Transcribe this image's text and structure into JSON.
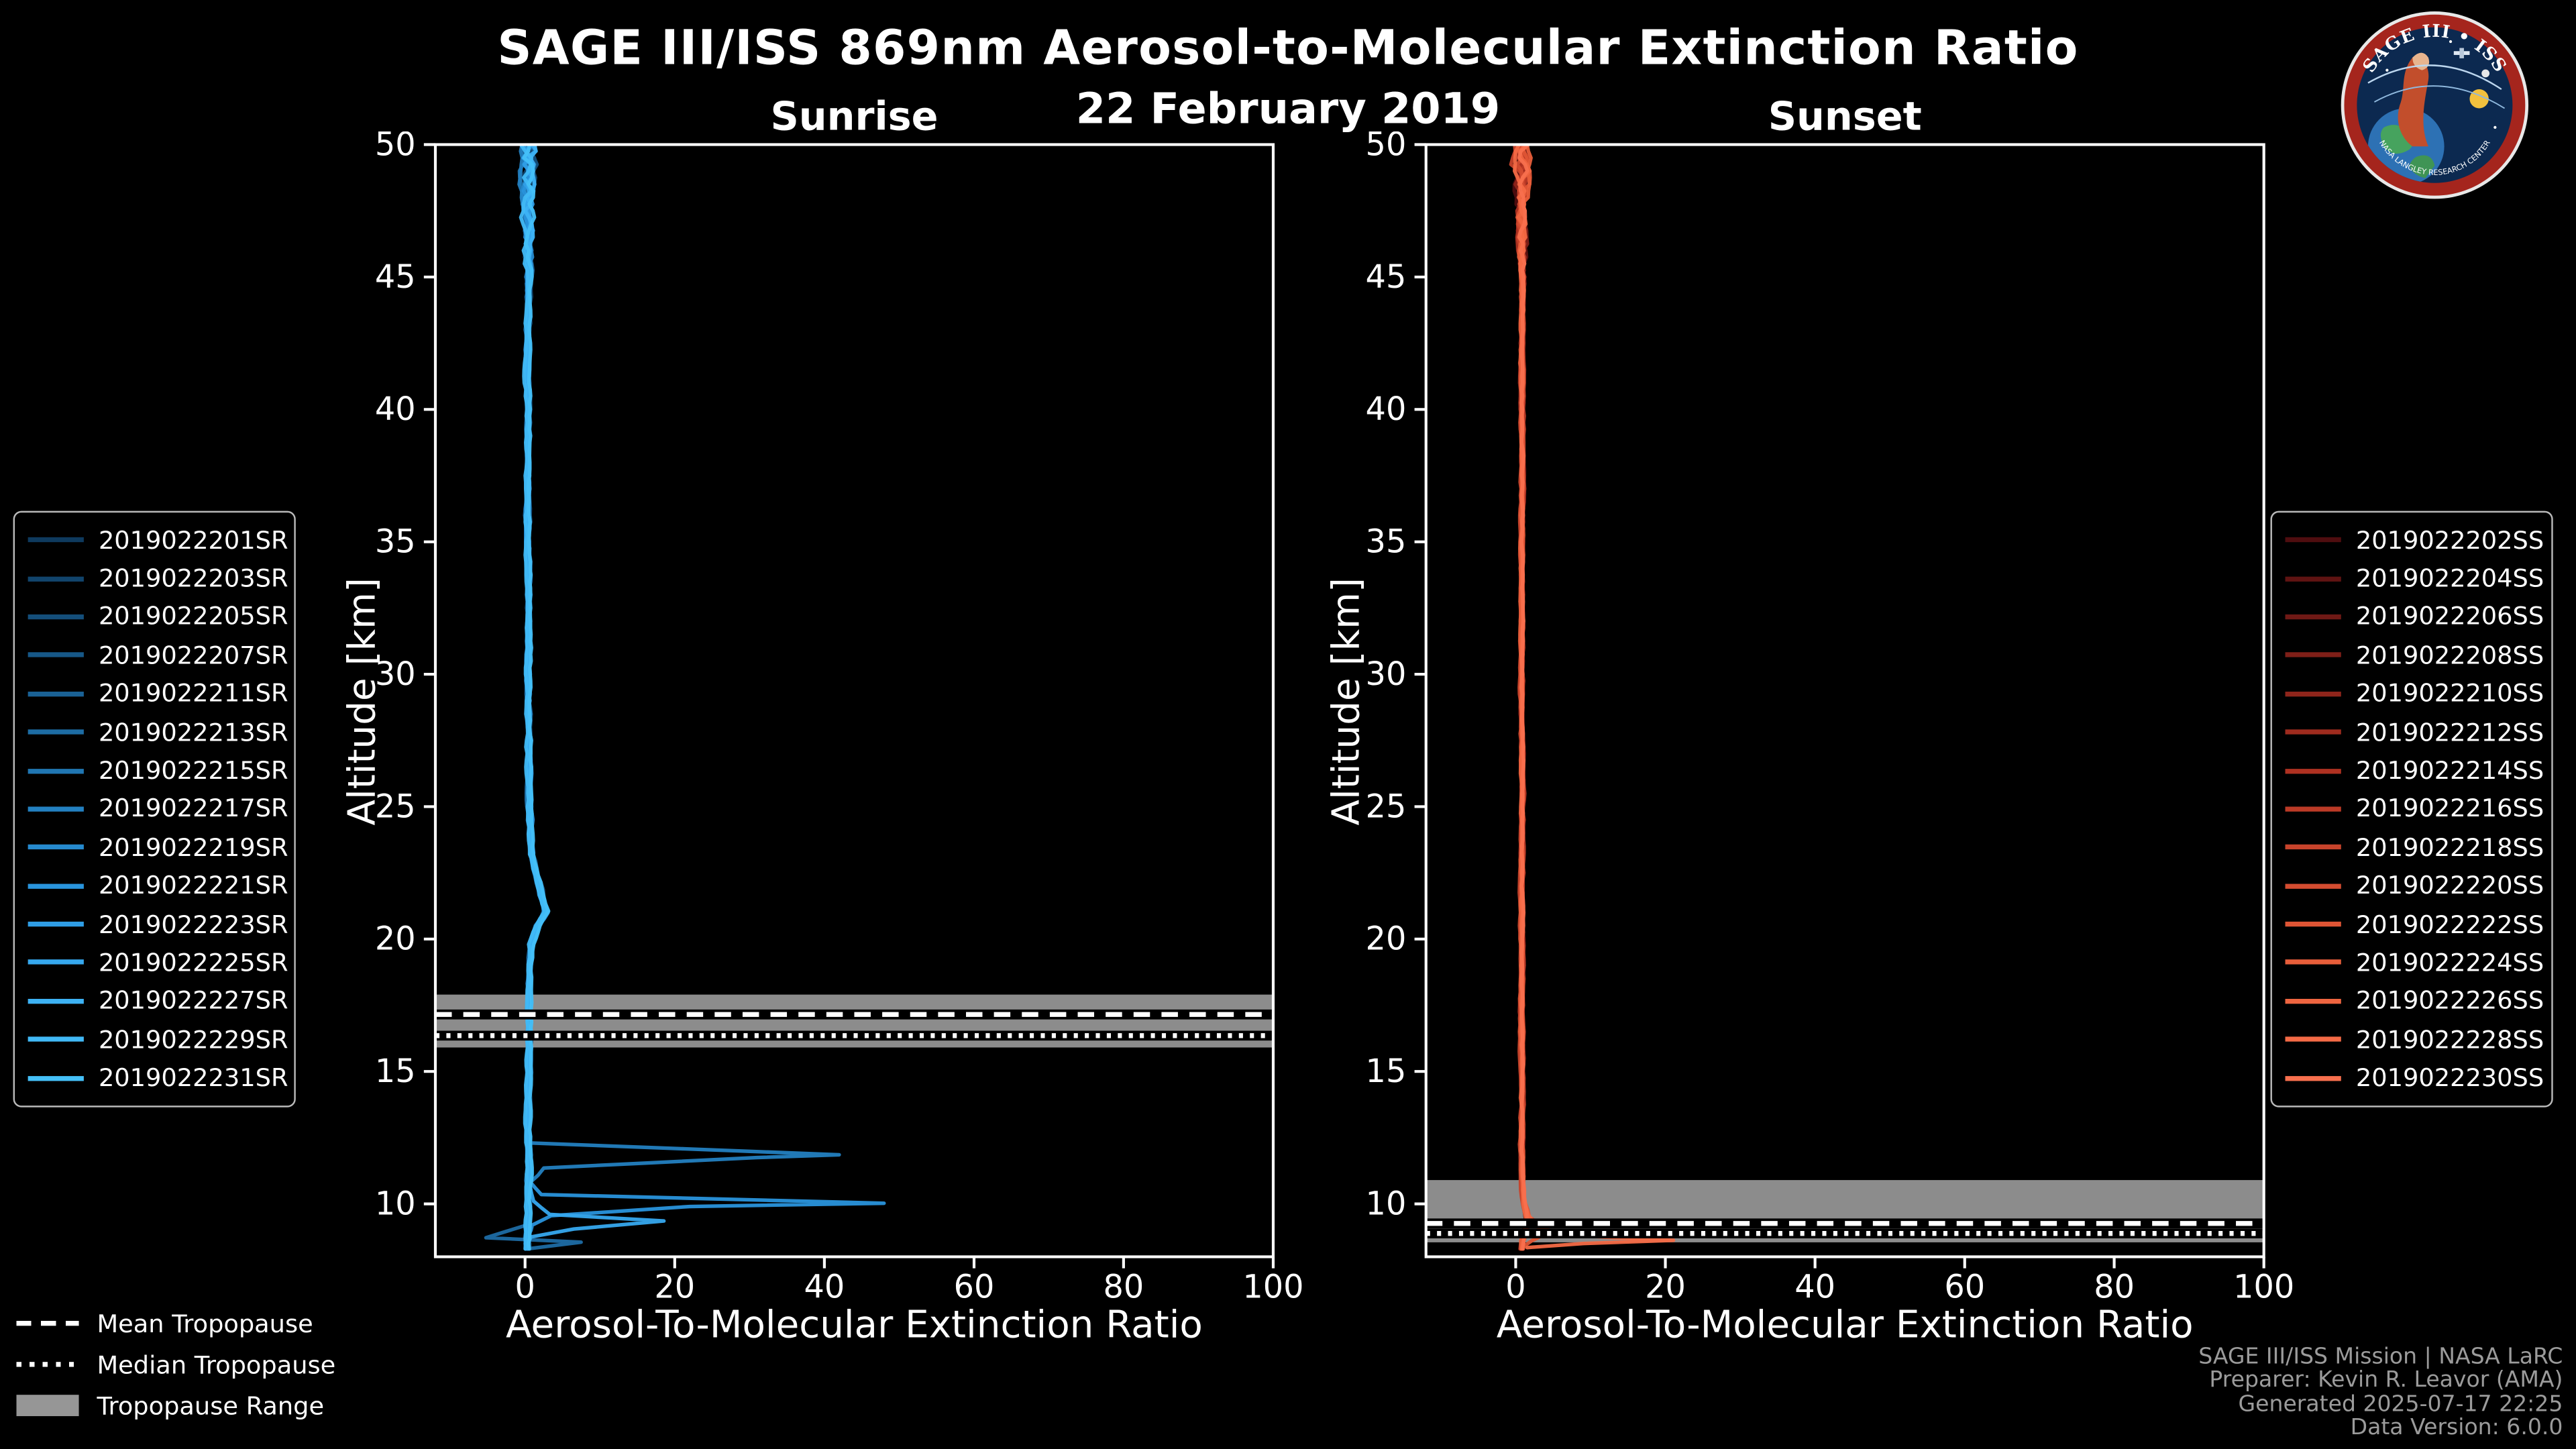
{
  "title": "SAGE III/ISS 869nm Aerosol-to-Molecular Extinction Ratio",
  "subtitle": "22 February 2019",
  "logo": {
    "top_text": "SAGE III • ISS",
    "bottom_text": "NASA LANGLEY RESEARCH CENTER"
  },
  "tropopause_legend": [
    {
      "style": "dashed",
      "label": "Mean Tropopause"
    },
    {
      "style": "dotted",
      "label": "Median Tropopause"
    },
    {
      "style": "patch",
      "label": "Tropopause Range"
    }
  ],
  "credits": [
    "SAGE III/ISS Mission | NASA LaRC",
    "Preparer: Kevin R. Leavor (AMA)",
    "Generated 2025-07-17 22:25",
    "Data Version: 6.0.0"
  ],
  "chart_data": [
    {
      "type": "line",
      "id": "sunrise",
      "title": "Sunrise",
      "xlabel": "Aerosol-To-Molecular Extinction Ratio",
      "ylabel": "Altitude [km]",
      "xlim": [
        -12,
        100
      ],
      "ylim": [
        8,
        50
      ],
      "xticks": [
        0,
        20,
        40,
        60,
        80,
        100
      ],
      "yticks": [
        10,
        15,
        20,
        25,
        30,
        35,
        40,
        45,
        50
      ],
      "grid": false,
      "legend_position": "outside-left",
      "tropopause": {
        "mean_km": 17.15,
        "median_km": 16.35,
        "range_km": [
          15.9,
          17.9
        ]
      },
      "noise": {
        "base": 0.3,
        "top_start": 44,
        "top_scale": 0.3
      },
      "base_profile": [
        [
          0.4,
          50
        ],
        [
          0.3,
          47
        ],
        [
          0.5,
          44.5
        ],
        [
          0.3,
          42
        ],
        [
          0.45,
          39
        ],
        [
          0.35,
          36
        ],
        [
          0.5,
          33
        ],
        [
          0.4,
          30
        ],
        [
          0.5,
          27.5
        ],
        [
          0.6,
          25
        ],
        [
          0.8,
          23.2
        ],
        [
          2.3,
          21.6
        ],
        [
          2.8,
          21.05
        ],
        [
          1.6,
          20.5
        ],
        [
          0.9,
          19.8
        ],
        [
          0.6,
          18.8
        ],
        [
          0.5,
          17.6
        ],
        [
          0.55,
          16.4
        ],
        [
          0.45,
          15.2
        ],
        [
          0.5,
          14
        ],
        [
          0.42,
          12.8
        ],
        [
          0.5,
          11.6
        ],
        [
          0.45,
          10.4
        ],
        [
          0.4,
          9.4
        ],
        [
          0.3,
          8.7
        ],
        [
          0.25,
          8.3
        ]
      ],
      "series": [
        {
          "label": "2019022201SR",
          "color": "#0e3a5e",
          "dx": -0.15
        },
        {
          "label": "2019022203SR",
          "color": "#11446c",
          "dx": 0.1
        },
        {
          "label": "2019022205SR",
          "color": "#144e7a",
          "dx": -0.05
        },
        {
          "label": "2019022207SR",
          "color": "#175888",
          "dx": 0.2
        },
        {
          "label": "2019022211SR",
          "color": "#1a6296",
          "dx": 0.0
        },
        {
          "label": "2019022213SR",
          "color": "#1d6ca4",
          "points": [
            [
              0.4,
              50
            ],
            [
              0.5,
              46
            ],
            [
              0.3,
              42
            ],
            [
              0.5,
              38
            ],
            [
              0.4,
              34
            ],
            [
              0.5,
              30
            ],
            [
              0.6,
              26
            ],
            [
              0.9,
              23
            ],
            [
              2.4,
              21.5
            ],
            [
              2.9,
              21.0
            ],
            [
              1.1,
              20.1
            ],
            [
              0.6,
              18.5
            ],
            [
              0.5,
              17
            ],
            [
              0.5,
              15.5
            ],
            [
              0.4,
              14
            ],
            [
              0.5,
              12.5
            ],
            [
              0.4,
              11
            ],
            [
              0.4,
              10
            ],
            [
              0.3,
              9.2
            ],
            [
              -5.2,
              8.72
            ],
            [
              7.5,
              8.55
            ],
            [
              0.3,
              8.3
            ]
          ]
        },
        {
          "label": "2019022215SR",
          "color": "#2076b2",
          "dx": -0.2
        },
        {
          "label": "2019022217SR",
          "color": "#2380c0",
          "points": [
            [
              0.4,
              50
            ],
            [
              0.3,
              46
            ],
            [
              0.5,
              42
            ],
            [
              0.4,
              38
            ],
            [
              0.5,
              34
            ],
            [
              0.4,
              30
            ],
            [
              0.6,
              26
            ],
            [
              1.0,
              23
            ],
            [
              2.3,
              21.5
            ],
            [
              2.7,
              21.0
            ],
            [
              1.0,
              20.0
            ],
            [
              0.6,
              18.5
            ],
            [
              0.5,
              17
            ],
            [
              0.4,
              15.5
            ],
            [
              0.5,
              14
            ],
            [
              0.5,
              13
            ],
            [
              0.8,
              12.3
            ],
            [
              42,
              11.85
            ],
            [
              31,
              11.75
            ],
            [
              2.5,
              11.35
            ],
            [
              0.7,
              10.8
            ],
            [
              0.4,
              10
            ],
            [
              0.3,
              9.2
            ],
            [
              0.2,
              8.4
            ]
          ]
        },
        {
          "label": "2019022219SR",
          "color": "#268ace",
          "dx": 0.15
        },
        {
          "label": "2019022221SR",
          "color": "#2994dc",
          "points": [
            [
              0.5,
              50
            ],
            [
              0.4,
              46
            ],
            [
              0.4,
              42
            ],
            [
              0.5,
              38
            ],
            [
              0.4,
              34
            ],
            [
              0.5,
              30
            ],
            [
              0.7,
              26
            ],
            [
              1.1,
              23
            ],
            [
              2.5,
              21.5
            ],
            [
              3.0,
              21.0
            ],
            [
              1.2,
              20.1
            ],
            [
              0.6,
              18.5
            ],
            [
              0.5,
              17
            ],
            [
              0.5,
              15.5
            ],
            [
              0.4,
              14
            ],
            [
              0.5,
              12.5
            ],
            [
              0.6,
              11.5
            ],
            [
              0.9,
              10.8
            ],
            [
              2.2,
              10.35
            ],
            [
              48,
              10.02
            ],
            [
              22,
              9.9
            ],
            [
              3.5,
              9.55
            ],
            [
              1.0,
              9.2
            ],
            [
              0.4,
              8.8
            ],
            [
              0.2,
              8.4
            ]
          ]
        },
        {
          "label": "2019022223SR",
          "color": "#2f9ee6",
          "dx": -0.1
        },
        {
          "label": "2019022225SR",
          "color": "#36a8ee",
          "points": [
            [
              0.4,
              50
            ],
            [
              0.5,
              46
            ],
            [
              0.4,
              42
            ],
            [
              0.4,
              38
            ],
            [
              0.5,
              34
            ],
            [
              0.5,
              30
            ],
            [
              0.6,
              26
            ],
            [
              0.9,
              23
            ],
            [
              2.2,
              21.4
            ],
            [
              2.6,
              21.0
            ],
            [
              1.0,
              20.0
            ],
            [
              0.5,
              18.5
            ],
            [
              0.5,
              17
            ],
            [
              0.4,
              15.5
            ],
            [
              0.5,
              14
            ],
            [
              0.4,
              12.5
            ],
            [
              0.5,
              11.2
            ],
            [
              1.1,
              10.1
            ],
            [
              3.2,
              9.6
            ],
            [
              18.5,
              9.35
            ],
            [
              6.5,
              9.05
            ],
            [
              0.8,
              8.75
            ],
            [
              0.3,
              8.35
            ]
          ]
        },
        {
          "label": "2019022227SR",
          "color": "#3db2f4",
          "dx": 0.05
        },
        {
          "label": "2019022229SR",
          "color": "#41b9f6",
          "dx": -0.25
        },
        {
          "label": "2019022231SR",
          "color": "#45c0f8",
          "dx": 0.25
        }
      ]
    },
    {
      "type": "line",
      "id": "sunset",
      "title": "Sunset",
      "xlabel": "Aerosol-To-Molecular Extinction Ratio",
      "ylabel": "Altitude [km]",
      "xlim": [
        -12,
        100
      ],
      "ylim": [
        8,
        50
      ],
      "xticks": [
        0,
        20,
        40,
        60,
        80,
        100
      ],
      "yticks": [
        10,
        15,
        20,
        25,
        30,
        35,
        40,
        45,
        50
      ],
      "grid": false,
      "legend_position": "outside-right",
      "tropopause": {
        "mean_km": 9.26,
        "median_km": 8.88,
        "range_km": [
          8.55,
          10.9
        ]
      },
      "noise": {
        "base": 0.22,
        "top_start": 44,
        "top_scale": 0.28
      },
      "base_profile": [
        [
          0.9,
          50
        ],
        [
          0.75,
          47
        ],
        [
          0.9,
          44
        ],
        [
          0.8,
          41
        ],
        [
          0.9,
          38
        ],
        [
          0.8,
          35
        ],
        [
          0.85,
          32
        ],
        [
          0.8,
          29
        ],
        [
          0.9,
          26
        ],
        [
          0.8,
          23
        ],
        [
          0.85,
          20
        ],
        [
          0.8,
          17
        ],
        [
          0.85,
          14
        ],
        [
          0.8,
          12
        ],
        [
          0.9,
          10.8
        ],
        [
          1.1,
          10
        ],
        [
          1.5,
          9.4
        ],
        [
          1.3,
          9.0
        ],
        [
          0.9,
          8.6
        ],
        [
          0.8,
          8.3
        ]
      ],
      "series": [
        {
          "label": "2019022202SS",
          "color": "#4f0d0f",
          "dx": -0.1
        },
        {
          "label": "2019022204SS",
          "color": "#5f1312",
          "dx": 0.1
        },
        {
          "label": "2019022206SS",
          "color": "#6f1915",
          "dx": 0.0
        },
        {
          "label": "2019022208SS",
          "color": "#7f1f18",
          "dx": 0.15
        },
        {
          "label": "2019022210SS",
          "color": "#8f251b",
          "dx": -0.15
        },
        {
          "label": "2019022212SS",
          "color": "#9f2b1e",
          "dx": 0.05
        },
        {
          "label": "2019022214SS",
          "color": "#af3121",
          "dx": -0.05
        },
        {
          "label": "2019022216SS",
          "color": "#bb3a26",
          "dx": 0.2
        },
        {
          "label": "2019022218SS",
          "color": "#c7432b",
          "dx": -0.2
        },
        {
          "label": "2019022220SS",
          "color": "#d34c30",
          "dx": 0.1
        },
        {
          "label": "2019022222SS",
          "color": "#df5535",
          "points": [
            [
              0.9,
              50
            ],
            [
              0.8,
              46
            ],
            [
              0.9,
              42
            ],
            [
              0.85,
              38
            ],
            [
              0.9,
              34
            ],
            [
              0.8,
              30
            ],
            [
              0.9,
              26
            ],
            [
              0.8,
              22
            ],
            [
              0.85,
              18
            ],
            [
              0.8,
              15
            ],
            [
              0.9,
              12
            ],
            [
              1.0,
              10.3
            ],
            [
              1.8,
              9.5
            ],
            [
              4.5,
              8.95
            ],
            [
              2.0,
              8.6
            ],
            [
              0.8,
              8.35
            ]
          ]
        },
        {
          "label": "2019022224SS",
          "color": "#e85e3a",
          "dx": -0.1
        },
        {
          "label": "2019022226SS",
          "color": "#ef6540",
          "dx": 0.0
        },
        {
          "label": "2019022228SS",
          "color": "#f46a46",
          "points": [
            [
              0.9,
              50
            ],
            [
              0.85,
              46
            ],
            [
              0.9,
              42
            ],
            [
              0.8,
              38
            ],
            [
              0.9,
              34
            ],
            [
              0.85,
              30
            ],
            [
              0.9,
              26
            ],
            [
              0.85,
              22
            ],
            [
              0.9,
              18
            ],
            [
              0.85,
              15
            ],
            [
              0.9,
              12
            ],
            [
              1.0,
              10.5
            ],
            [
              1.6,
              9.6
            ],
            [
              2.6,
              9.15
            ],
            [
              6,
              8.85
            ],
            [
              13,
              8.72
            ],
            [
              21,
              8.62
            ],
            [
              9,
              8.5
            ],
            [
              1.5,
              8.35
            ]
          ]
        },
        {
          "label": "2019022230SS",
          "color": "#f8704e",
          "dx": 0.05
        }
      ]
    }
  ]
}
